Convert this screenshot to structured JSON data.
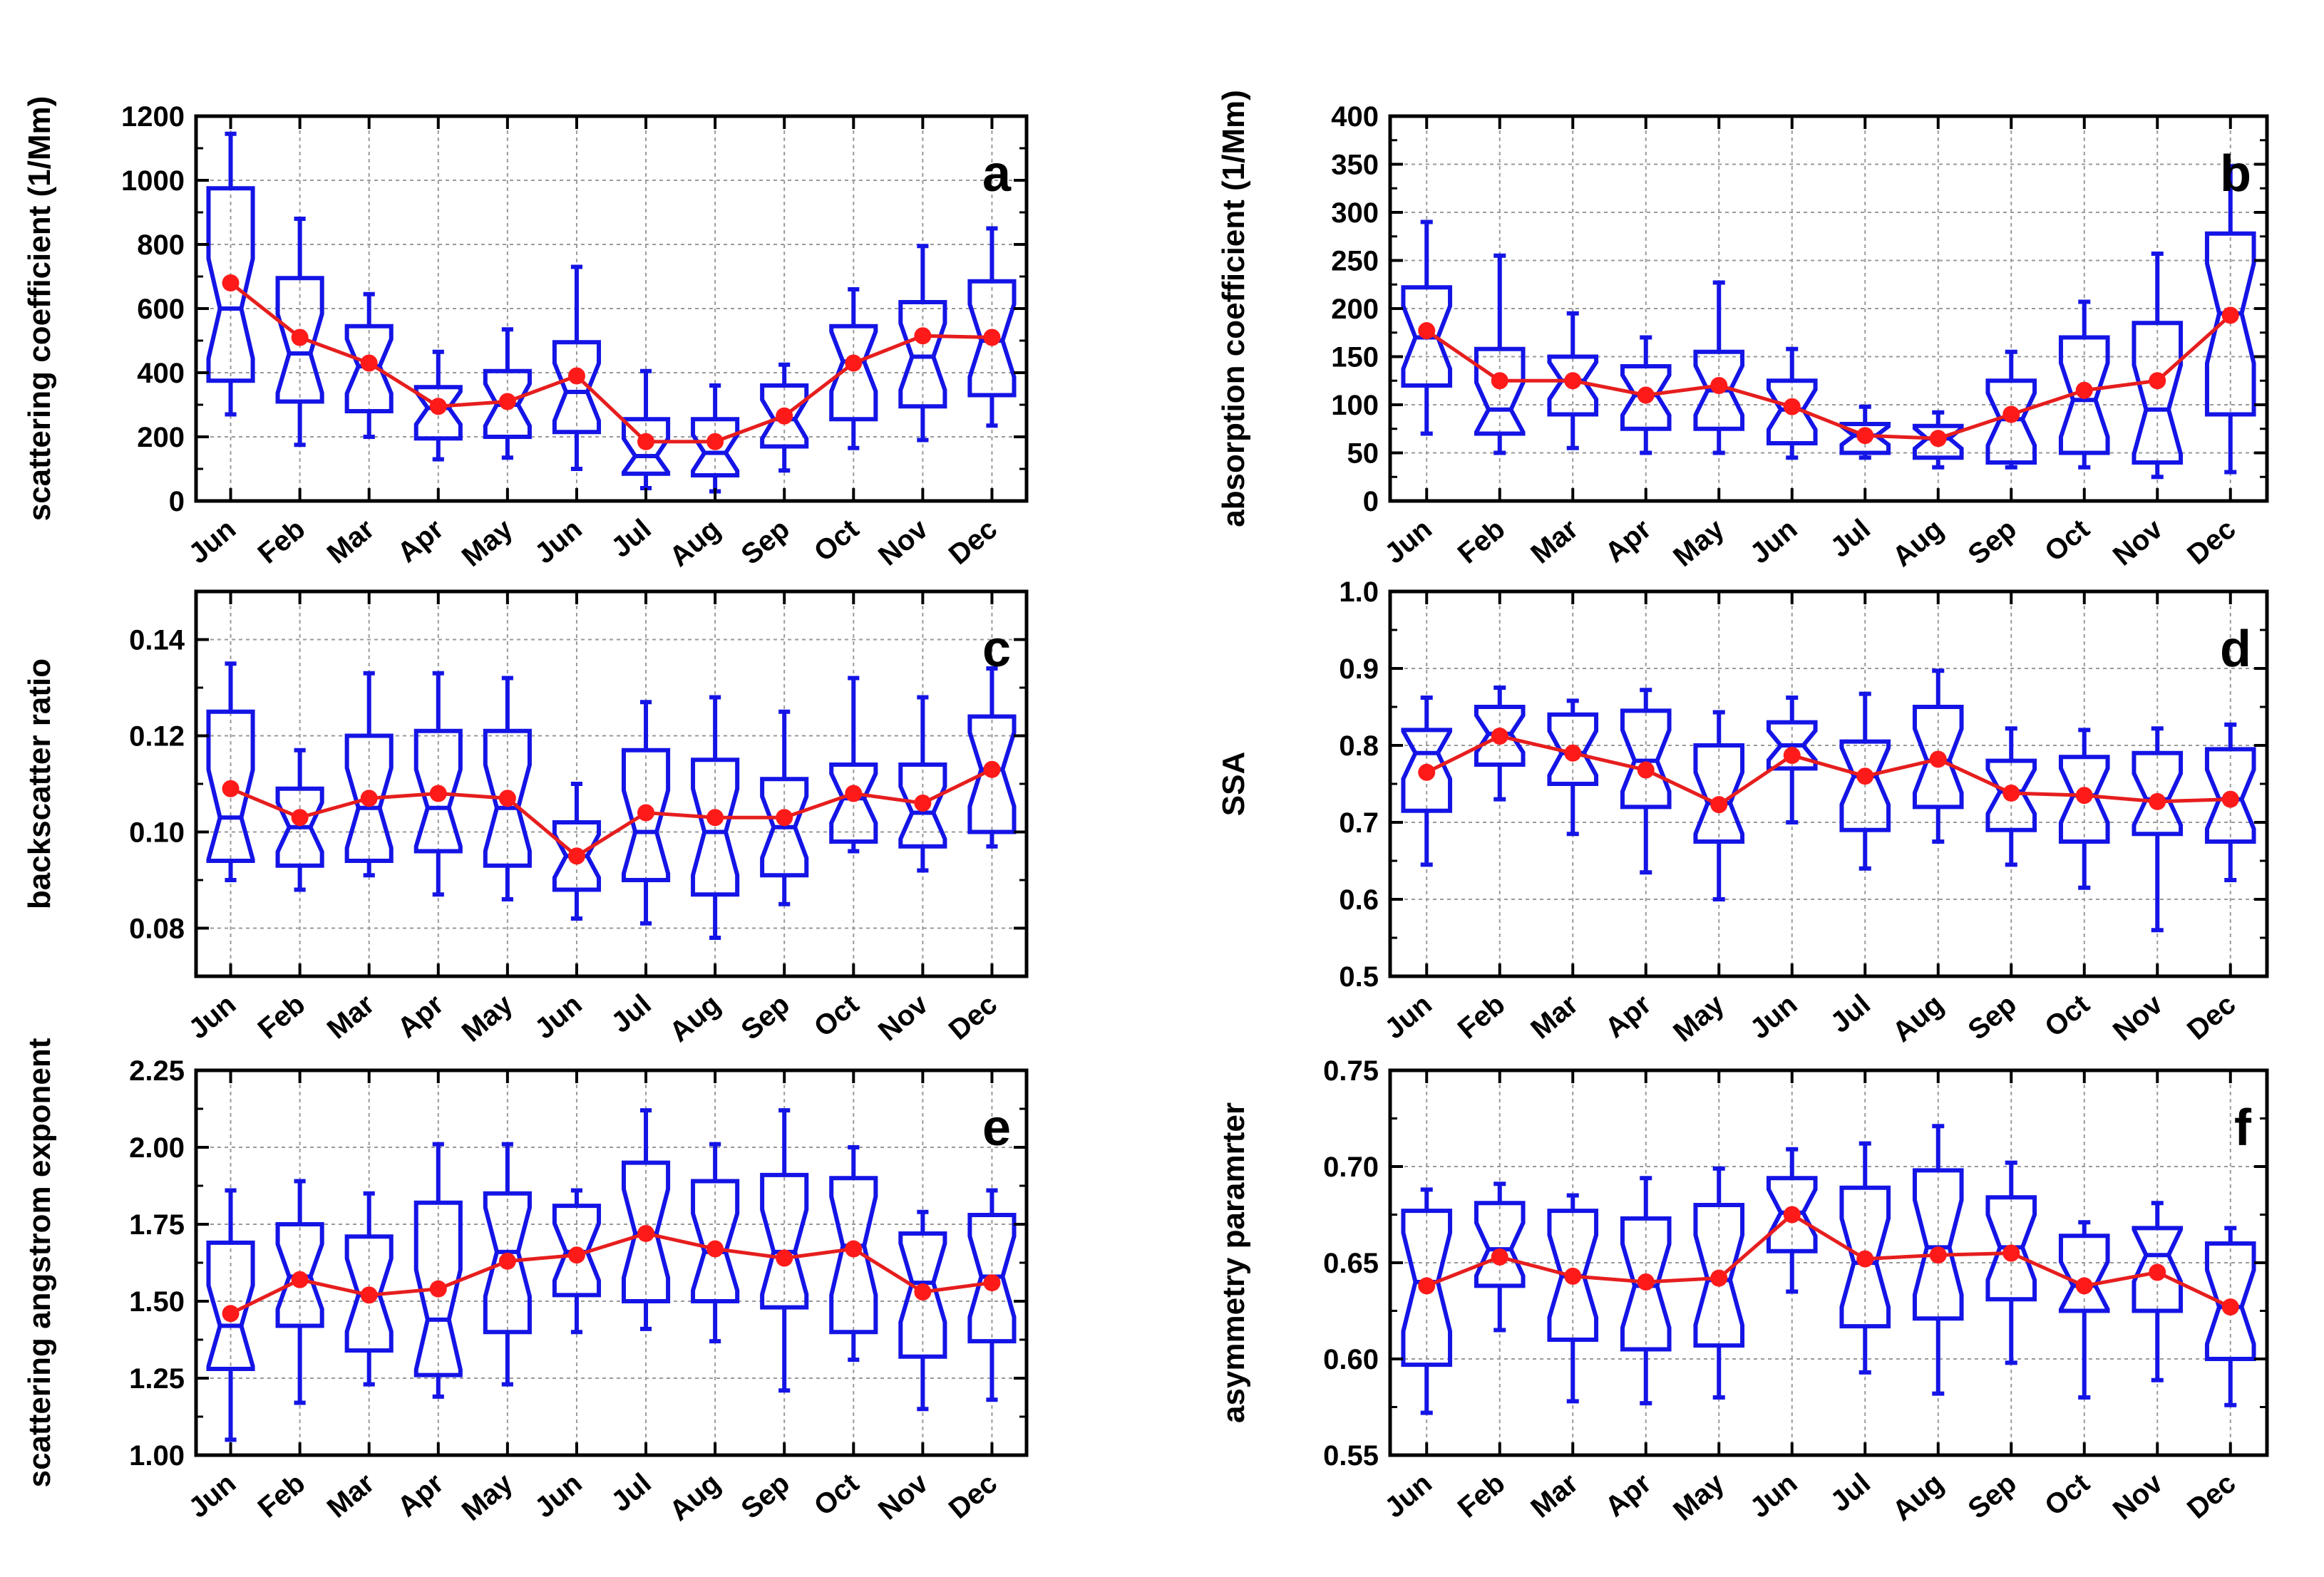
{
  "figure": {
    "colors": {
      "box": "#1414e6",
      "mean": "#ff1a1a",
      "line": "#e61e1e",
      "grid": "#9a9a9a",
      "frame": "#000000"
    }
  },
  "chart_data": [
    {
      "id": "a",
      "type": "box",
      "panel_label": "a",
      "title": "",
      "xlabel": "",
      "ylabel": "scattering coefficient (1/Mm)",
      "categories": [
        "Jun",
        "Feb",
        "Mar",
        "Apr",
        "May",
        "Jun",
        "Jul",
        "Aug",
        "Sep",
        "Oct",
        "Nov",
        "Dec"
      ],
      "ylim": [
        0,
        1200
      ],
      "yticks": [
        0,
        200,
        400,
        600,
        800,
        1000,
        1200
      ],
      "ytick_labels": [
        "0",
        "200",
        "400",
        "600",
        "800",
        "1000",
        "1200"
      ],
      "whisker_low": [
        270,
        175,
        200,
        130,
        135,
        100,
        40,
        30,
        95,
        165,
        190,
        235
      ],
      "q1": [
        375,
        310,
        280,
        195,
        200,
        215,
        85,
        80,
        170,
        255,
        295,
        330
      ],
      "median": [
        600,
        460,
        420,
        290,
        300,
        340,
        140,
        150,
        255,
        435,
        450,
        500
      ],
      "q3": [
        975,
        695,
        545,
        355,
        405,
        495,
        255,
        255,
        360,
        545,
        620,
        685
      ],
      "whisker_high": [
        1145,
        880,
        645,
        465,
        535,
        730,
        405,
        360,
        425,
        660,
        795,
        850
      ],
      "mean": [
        680,
        510,
        430,
        295,
        310,
        390,
        185,
        185,
        265,
        430,
        515,
        510
      ]
    },
    {
      "id": "b",
      "type": "box",
      "panel_label": "b",
      "title": "",
      "xlabel": "",
      "ylabel": "absorption coefficient (1/Mm)",
      "categories": [
        "Jun",
        "Feb",
        "Mar",
        "Apr",
        "May",
        "Jun",
        "Jul",
        "Aug",
        "Sep",
        "Oct",
        "Nov",
        "Dec"
      ],
      "ylim": [
        0,
        400
      ],
      "yticks": [
        0,
        50,
        100,
        150,
        200,
        250,
        300,
        350,
        400
      ],
      "ytick_labels": [
        "0",
        "50",
        "100",
        "150",
        "200",
        "250",
        "300",
        "350",
        "400"
      ],
      "whisker_low": [
        70,
        50,
        55,
        50,
        50,
        45,
        45,
        35,
        35,
        35,
        25,
        30
      ],
      "q1": [
        120,
        70,
        90,
        75,
        75,
        60,
        50,
        45,
        40,
        50,
        40,
        90
      ],
      "median": [
        170,
        95,
        125,
        110,
        115,
        95,
        68,
        65,
        85,
        105,
        95,
        195
      ],
      "q3": [
        222,
        158,
        150,
        140,
        155,
        125,
        80,
        78,
        125,
        170,
        185,
        278
      ],
      "whisker_high": [
        290,
        255,
        195,
        170,
        227,
        158,
        98,
        92,
        155,
        207,
        257,
        348
      ],
      "mean": [
        177,
        125,
        125,
        110,
        120,
        98,
        68,
        65,
        90,
        115,
        125,
        193
      ]
    },
    {
      "id": "c",
      "type": "box",
      "panel_label": "c",
      "title": "",
      "xlabel": "",
      "ylabel": "backscatter ratio",
      "categories": [
        "Jun",
        "Feb",
        "Mar",
        "Apr",
        "May",
        "Jun",
        "Jul",
        "Aug",
        "Sep",
        "Oct",
        "Nov",
        "Dec"
      ],
      "ylim": [
        0.07,
        0.15
      ],
      "yticks": [
        0.08,
        0.1,
        0.12,
        0.14
      ],
      "ytick_labels": [
        "0.08",
        "0.10",
        "0.12",
        "0.14"
      ],
      "whisker_low": [
        0.09,
        0.088,
        0.091,
        0.087,
        0.086,
        0.082,
        0.081,
        0.078,
        0.085,
        0.096,
        0.092,
        0.097
      ],
      "q1": [
        0.094,
        0.093,
        0.094,
        0.096,
        0.093,
        0.088,
        0.09,
        0.087,
        0.091,
        0.098,
        0.097,
        0.1
      ],
      "median": [
        0.103,
        0.101,
        0.105,
        0.105,
        0.105,
        0.095,
        0.1,
        0.1,
        0.101,
        0.107,
        0.104,
        0.113
      ],
      "q3": [
        0.125,
        0.109,
        0.12,
        0.121,
        0.121,
        0.102,
        0.117,
        0.115,
        0.111,
        0.114,
        0.114,
        0.124
      ],
      "whisker_high": [
        0.135,
        0.117,
        0.133,
        0.133,
        0.132,
        0.11,
        0.127,
        0.128,
        0.125,
        0.132,
        0.128,
        0.134
      ],
      "mean": [
        0.109,
        0.103,
        0.107,
        0.108,
        0.107,
        0.095,
        0.104,
        0.103,
        0.103,
        0.108,
        0.106,
        0.113
      ]
    },
    {
      "id": "d",
      "type": "box",
      "panel_label": "d",
      "title": "",
      "xlabel": "",
      "ylabel": "SSA",
      "categories": [
        "Jun",
        "Feb",
        "Mar",
        "Apr",
        "May",
        "Jun",
        "Jul",
        "Aug",
        "Sep",
        "Oct",
        "Nov",
        "Dec"
      ],
      "ylim": [
        0.5,
        1.0
      ],
      "yticks": [
        0.5,
        0.6,
        0.7,
        0.8,
        0.9,
        1.0
      ],
      "ytick_labels": [
        "0.5",
        "0.6",
        "0.7",
        "0.8",
        "0.9",
        "1.0"
      ],
      "whisker_low": [
        0.645,
        0.73,
        0.685,
        0.635,
        0.6,
        0.7,
        0.64,
        0.675,
        0.645,
        0.615,
        0.56,
        0.625
      ],
      "q1": [
        0.715,
        0.775,
        0.75,
        0.72,
        0.675,
        0.77,
        0.69,
        0.72,
        0.69,
        0.675,
        0.685,
        0.675
      ],
      "median": [
        0.79,
        0.815,
        0.79,
        0.78,
        0.725,
        0.8,
        0.76,
        0.78,
        0.74,
        0.735,
        0.73,
        0.73
      ],
      "q3": [
        0.82,
        0.85,
        0.84,
        0.845,
        0.8,
        0.83,
        0.805,
        0.85,
        0.78,
        0.785,
        0.79,
        0.795
      ],
      "whisker_high": [
        0.862,
        0.875,
        0.858,
        0.872,
        0.843,
        0.862,
        0.867,
        0.897,
        0.822,
        0.82,
        0.822,
        0.827
      ],
      "mean": [
        0.765,
        0.812,
        0.79,
        0.768,
        0.723,
        0.787,
        0.76,
        0.782,
        0.738,
        0.735,
        0.727,
        0.73
      ]
    },
    {
      "id": "e",
      "type": "box",
      "panel_label": "e",
      "title": "",
      "xlabel": "",
      "ylabel": "scattering angstrom exponent",
      "categories": [
        "Jun",
        "Feb",
        "Mar",
        "Apr",
        "May",
        "Jun",
        "Jul",
        "Aug",
        "Sep",
        "Oct",
        "Nov",
        "Dec"
      ],
      "ylim": [
        1.0,
        2.25
      ],
      "yticks": [
        1.0,
        1.25,
        1.5,
        1.75,
        2.0,
        2.25
      ],
      "ytick_labels": [
        "1.00",
        "1.25",
        "1.50",
        "1.75",
        "2.00",
        "2.25"
      ],
      "whisker_low": [
        1.05,
        1.17,
        1.23,
        1.19,
        1.23,
        1.4,
        1.41,
        1.37,
        1.21,
        1.31,
        1.15,
        1.18
      ],
      "q1": [
        1.28,
        1.42,
        1.34,
        1.26,
        1.4,
        1.52,
        1.5,
        1.5,
        1.48,
        1.4,
        1.32,
        1.37
      ],
      "median": [
        1.42,
        1.58,
        1.52,
        1.44,
        1.66,
        1.66,
        1.72,
        1.66,
        1.66,
        1.68,
        1.56,
        1.58
      ],
      "q3": [
        1.69,
        1.75,
        1.71,
        1.82,
        1.85,
        1.81,
        1.95,
        1.89,
        1.91,
        1.9,
        1.72,
        1.78
      ],
      "whisker_high": [
        1.86,
        1.89,
        1.85,
        2.01,
        2.01,
        1.86,
        2.12,
        2.01,
        2.12,
        2.0,
        1.79,
        1.86
      ],
      "mean": [
        1.46,
        1.57,
        1.52,
        1.54,
        1.63,
        1.65,
        1.72,
        1.67,
        1.64,
        1.67,
        1.53,
        1.56
      ]
    },
    {
      "id": "f",
      "type": "box",
      "panel_label": "f",
      "title": "",
      "xlabel": "",
      "ylabel": "asymmetry paramrter",
      "categories": [
        "Jun",
        "Feb",
        "Mar",
        "Apr",
        "May",
        "Jun",
        "Jul",
        "Aug",
        "Sep",
        "Oct",
        "Nov",
        "Dec"
      ],
      "ylim": [
        0.55,
        0.75
      ],
      "yticks": [
        0.55,
        0.6,
        0.65,
        0.7,
        0.75
      ],
      "ytick_labels": [
        "0.55",
        "0.60",
        "0.65",
        "0.70",
        "0.75"
      ],
      "whisker_low": [
        0.572,
        0.615,
        0.578,
        0.577,
        0.58,
        0.635,
        0.593,
        0.582,
        0.598,
        0.58,
        0.589,
        0.576
      ],
      "q1": [
        0.597,
        0.638,
        0.61,
        0.605,
        0.607,
        0.656,
        0.617,
        0.621,
        0.631,
        0.625,
        0.625,
        0.6
      ],
      "median": [
        0.64,
        0.657,
        0.643,
        0.638,
        0.641,
        0.676,
        0.65,
        0.658,
        0.658,
        0.638,
        0.654,
        0.627
      ],
      "q3": [
        0.677,
        0.681,
        0.677,
        0.673,
        0.68,
        0.694,
        0.689,
        0.698,
        0.684,
        0.664,
        0.668,
        0.66
      ],
      "whisker_high": [
        0.688,
        0.691,
        0.685,
        0.694,
        0.699,
        0.709,
        0.712,
        0.721,
        0.702,
        0.671,
        0.681,
        0.668
      ],
      "mean": [
        0.638,
        0.653,
        0.643,
        0.64,
        0.642,
        0.675,
        0.652,
        0.654,
        0.655,
        0.638,
        0.645,
        0.627
      ]
    }
  ]
}
